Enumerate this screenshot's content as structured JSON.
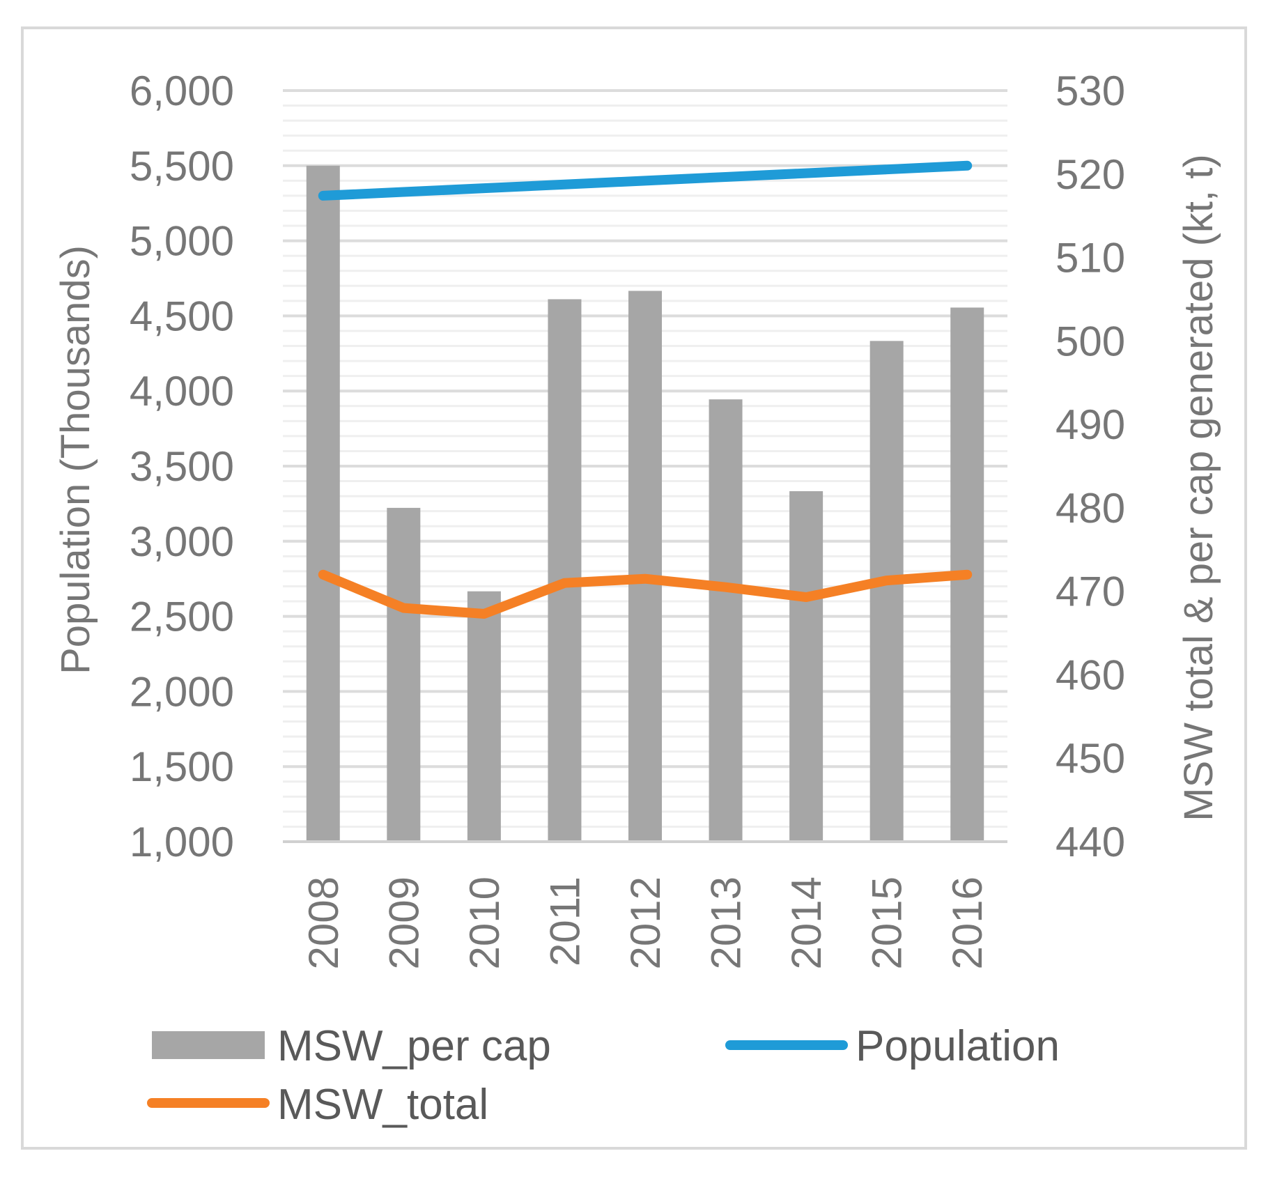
{
  "chart_data": {
    "type": "bar",
    "title": "",
    "categories": [
      "2008",
      "2009",
      "2010",
      "2011",
      "2012",
      "2013",
      "2014",
      "2015",
      "2016"
    ],
    "series": [
      {
        "name": "MSW_per cap",
        "type": "bar",
        "axis": "right",
        "color": "#A6A6A6",
        "values": [
          521,
          480,
          470,
          505,
          506,
          493,
          482,
          500,
          504
        ]
      },
      {
        "name": "Population",
        "type": "line",
        "axis": "left",
        "color": "#1F9BD7",
        "values": [
          5300,
          5325,
          5350,
          5375,
          5400,
          5425,
          5450,
          5475,
          5500
        ]
      },
      {
        "name": "MSW_total",
        "type": "line",
        "axis": "right",
        "color": "#F58025",
        "values": [
          472,
          468,
          467.3,
          471,
          471.5,
          470.5,
          469.3,
          471.3,
          472
        ]
      }
    ],
    "y_left": {
      "label": "Population (Thousands)",
      "min": 1000,
      "max": 6000,
      "step": 500,
      "ticks": [
        "1,000",
        "1,500",
        "2,000",
        "2,500",
        "3,000",
        "3,500",
        "4,000",
        "4,500",
        "5,000",
        "5,500",
        "6,000"
      ]
    },
    "y_right": {
      "label": "MSW total & per cap generated (kt, t)",
      "min": 440,
      "max": 530,
      "step": 10,
      "ticks": [
        "440",
        "450",
        "460",
        "470",
        "480",
        "490",
        "500",
        "510",
        "520",
        "530"
      ]
    },
    "legend": {
      "position": "bottom",
      "order": [
        "MSW_per cap",
        "Population",
        "MSW_total"
      ]
    },
    "grid": true
  }
}
